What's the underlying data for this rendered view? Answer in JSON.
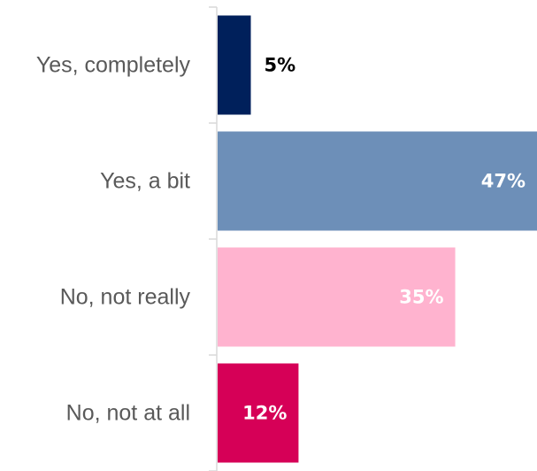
{
  "chart_data": {
    "type": "bar",
    "orientation": "horizontal",
    "categories": [
      "Yes, completely",
      "Yes, a bit",
      "No, not really",
      "No, not at all"
    ],
    "values": [
      5,
      47,
      35,
      12
    ],
    "value_labels": [
      "5%",
      "47%",
      "35%",
      "12%"
    ],
    "unit": "%",
    "colors": [
      "#00205B",
      "#6D8FB8",
      "#FFB3CF",
      "#D60057"
    ],
    "label_colors": [
      "#000000",
      "#FFFFFF",
      "#FFFFFF",
      "#FFFFFF"
    ],
    "label_positions": [
      "outside",
      "inside-end",
      "inside-end",
      "inside-end"
    ],
    "xlim": [
      0,
      47
    ],
    "title": "",
    "xlabel": "",
    "ylabel": "",
    "grid": false,
    "legend": "none"
  }
}
